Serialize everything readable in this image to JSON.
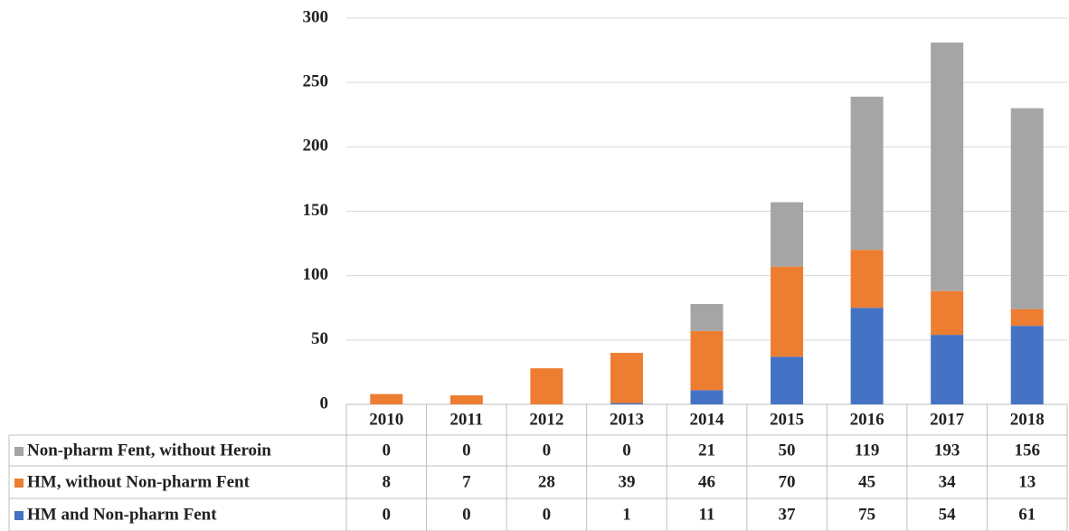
{
  "chart_data": {
    "type": "stacked_bar",
    "categories": [
      "2010",
      "2011",
      "2012",
      "2013",
      "2014",
      "2015",
      "2016",
      "2017",
      "2018"
    ],
    "series": [
      {
        "name": "Non-pharm Fent, without Heroin",
        "color": "#a5a5a5",
        "values": [
          0,
          0,
          0,
          0,
          21,
          50,
          119,
          193,
          156
        ]
      },
      {
        "name": "HM, without Non-pharm Fent",
        "color": "#ed7d31",
        "values": [
          8,
          7,
          28,
          39,
          46,
          70,
          45,
          34,
          13
        ]
      },
      {
        "name": "HM and Non-pharm Fent",
        "color": "#4472c4",
        "values": [
          0,
          0,
          0,
          1,
          11,
          37,
          75,
          54,
          61
        ]
      }
    ],
    "ylim": [
      0,
      300
    ],
    "yticks": [
      0,
      50,
      100,
      150,
      200,
      250,
      300
    ],
    "grid": true
  }
}
